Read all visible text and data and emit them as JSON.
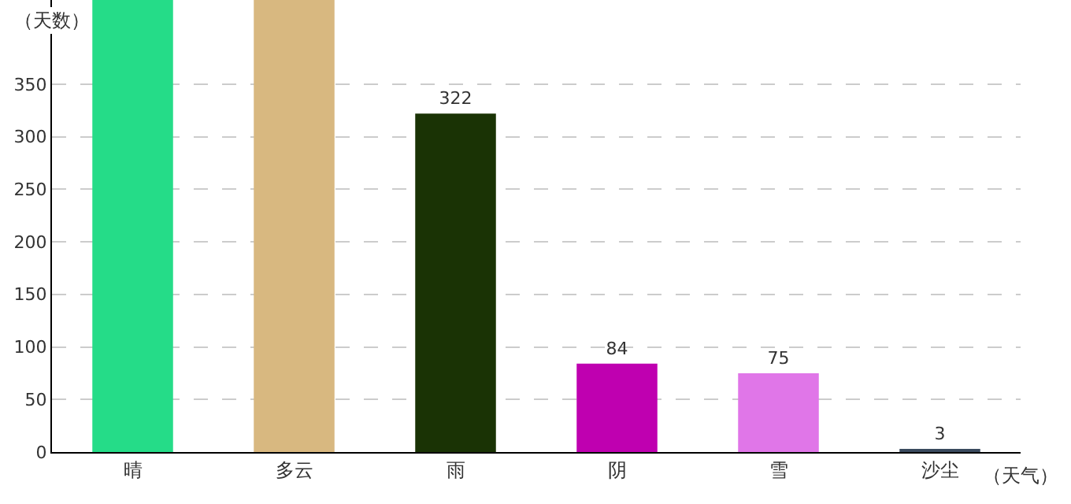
{
  "chart_data": {
    "type": "bar",
    "xlabel": "（天气）",
    "ylabel": "（天数）",
    "categories": [
      "晴",
      "多云",
      "雨",
      "阴",
      "雪",
      "沙尘"
    ],
    "values": [
      430,
      430,
      322,
      84,
      75,
      3
    ],
    "value_labels": [
      null,
      null,
      "322",
      "84",
      "75",
      "3"
    ],
    "colors": [
      "#25dc88",
      "#d8b880",
      "#1a3305",
      "#bf00b0",
      "#e076e8",
      "#3a4a5e"
    ],
    "ylim": [
      0,
      430
    ],
    "yticks": [
      0,
      50,
      100,
      150,
      200,
      250,
      300,
      350
    ],
    "grid": "y"
  }
}
